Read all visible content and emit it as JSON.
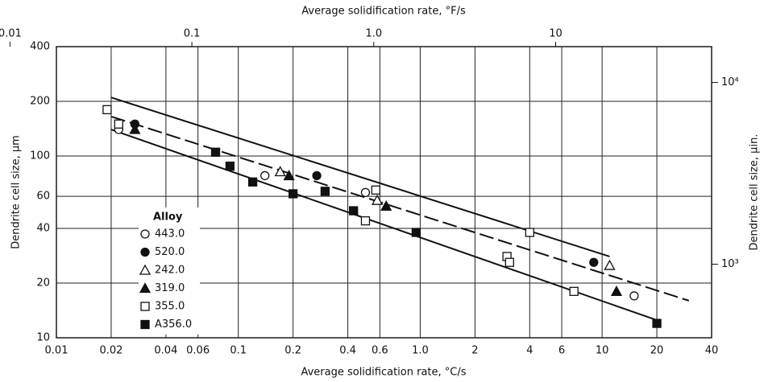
{
  "chart_data": {
    "type": "scatter",
    "title": "Average solidification rate, °F/s",
    "x_label": "Average solidification rate, °C/s",
    "y_label": "Dendrite cell size, µm",
    "y2_label": "Dendrite cell size, µin.",
    "legend_title": "Alloy",
    "log_x": true,
    "log_y": true,
    "grid": true,
    "xlim": [
      0.01,
      40
    ],
    "xticks": [
      0.01,
      0.02,
      0.04,
      0.06,
      0.1,
      0.2,
      0.4,
      0.6,
      {
        "value": 1,
        "label": "1.0"
      },
      2,
      4,
      6,
      10,
      20,
      40
    ],
    "x2lim": [
      0.018,
      72
    ],
    "x2ticks": [
      0.01,
      0.1,
      {
        "value": 1,
        "label": "1.0"
      },
      10
    ],
    "ylim": [
      10,
      400
    ],
    "yticks": [
      10,
      20,
      40,
      60,
      100,
      200,
      400
    ],
    "y2lim": [
      393.7,
      15748
    ],
    "y2ticks": [
      {
        "value": 1000,
        "label": "10³"
      },
      {
        "value": 10000,
        "label": "10⁴"
      }
    ],
    "series": [
      {
        "name": "443.0",
        "marker": "circle",
        "filled": false,
        "color": "#111",
        "x": [
          0.022,
          0.14,
          0.5,
          15
        ],
        "values": [
          140,
          78,
          63,
          17
        ]
      },
      {
        "name": "520.0",
        "marker": "circle",
        "filled": true,
        "color": "#111",
        "x": [
          0.027,
          0.27,
          9
        ],
        "values": [
          150,
          78,
          26
        ]
      },
      {
        "name": "242.0",
        "marker": "triangle",
        "filled": false,
        "color": "#111",
        "x": [
          0.17,
          0.58,
          11
        ],
        "values": [
          82,
          57,
          25
        ]
      },
      {
        "name": "319.0",
        "marker": "triangle",
        "filled": true,
        "color": "#111",
        "x": [
          0.027,
          0.19,
          0.65,
          12
        ],
        "values": [
          140,
          78,
          53,
          18
        ]
      },
      {
        "name": "355.0",
        "marker": "square",
        "filled": false,
        "color": "#111",
        "x": [
          0.019,
          0.022,
          0.57,
          0.5,
          3,
          3.1,
          4,
          7
        ],
        "values": [
          180,
          150,
          65,
          44,
          28,
          26,
          38,
          18
        ]
      },
      {
        "name": "A356.0",
        "marker": "square",
        "filled": true,
        "color": "#111",
        "x": [
          0.075,
          0.09,
          0.12,
          0.2,
          0.3,
          0.43,
          0.95,
          20
        ],
        "values": [
          105,
          88,
          72,
          62,
          64,
          50,
          38,
          12
        ]
      }
    ],
    "fit_lines": [
      {
        "dashed": false,
        "x": [
          0.02,
          11
        ],
        "values": [
          210,
          28
        ]
      },
      {
        "dashed": true,
        "x": [
          0.02,
          30
        ],
        "values": [
          165,
          16
        ]
      },
      {
        "dashed": false,
        "x": [
          0.02,
          20
        ],
        "values": [
          140,
          12.5
        ]
      }
    ]
  }
}
